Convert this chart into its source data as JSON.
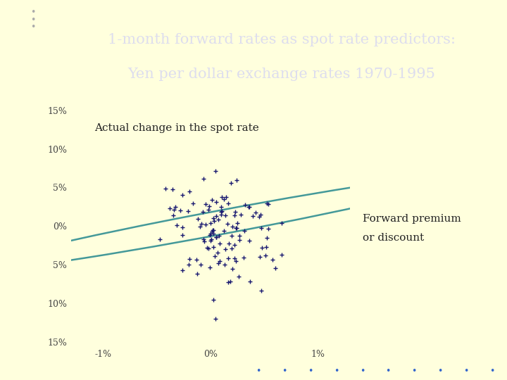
{
  "title_line1": "1-month forward rates as spot rate predictors:",
  "title_line2": "Yen per dollar exchange rates 1970-1995",
  "title_bg_color": "#2277CC",
  "title_text_color": "#DDDDEE",
  "bg_color": "#FFFFDD",
  "plot_bg_color": "#FFFFDD",
  "dot_color": "#191970",
  "ellipse_color": "#449999",
  "annotation_y": "Actual change in the spot rate",
  "annotation_x_line1": "Forward premium",
  "annotation_x_line2": "or discount"
}
